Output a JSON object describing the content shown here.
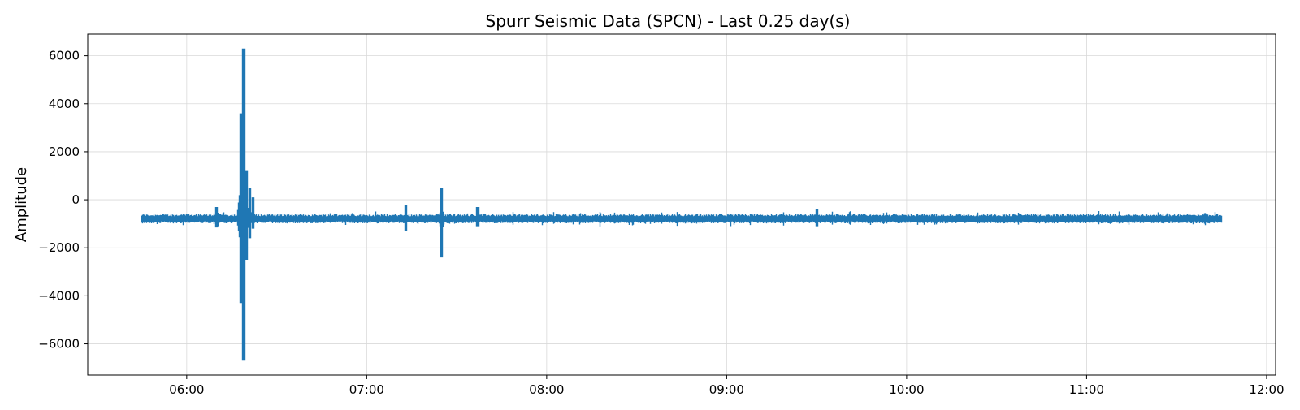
{
  "chart_data": {
    "type": "line",
    "title": "Spurr Seismic Data (SPCN) - Last 0.25 day(s)",
    "xlabel": "",
    "ylabel": "Amplitude",
    "x_axis": {
      "kind": "time",
      "range": [
        "05:27",
        "12:03"
      ],
      "ticks": [
        "06:00",
        "07:00",
        "08:00",
        "09:00",
        "10:00",
        "11:00",
        "12:00"
      ]
    },
    "y_axis": {
      "range": [
        -7300,
        6900
      ],
      "ticks": [
        6000,
        4000,
        2000,
        0,
        -2000,
        -4000,
        -6000
      ],
      "tick_labels": [
        "6000",
        "4000",
        "2000",
        "0",
        "−2000",
        "−4000",
        "−6000"
      ]
    },
    "grid": true,
    "line_color": "#1f77b4",
    "series": [
      {
        "baseline": -780,
        "band_low": -980,
        "band_high": -600,
        "data_start": "05:45",
        "data_end": "11:45",
        "events": [
          {
            "time": "06:10",
            "min": -1150,
            "max": -300
          },
          {
            "time": "06:18",
            "min": -4300,
            "max": 3600
          },
          {
            "time": "06:19",
            "min": -6700,
            "max": 6300
          },
          {
            "time": "06:20",
            "min": -2500,
            "max": 1200
          },
          {
            "time": "06:21",
            "min": -1600,
            "max": 500
          },
          {
            "time": "06:22",
            "min": -1200,
            "max": 100
          },
          {
            "time": "07:13",
            "min": -1300,
            "max": -200
          },
          {
            "time": "07:25",
            "min": -2400,
            "max": 500
          },
          {
            "time": "07:37",
            "min": -1100,
            "max": -300
          },
          {
            "time": "09:30",
            "min": -1100,
            "max": -380
          }
        ]
      }
    ]
  }
}
